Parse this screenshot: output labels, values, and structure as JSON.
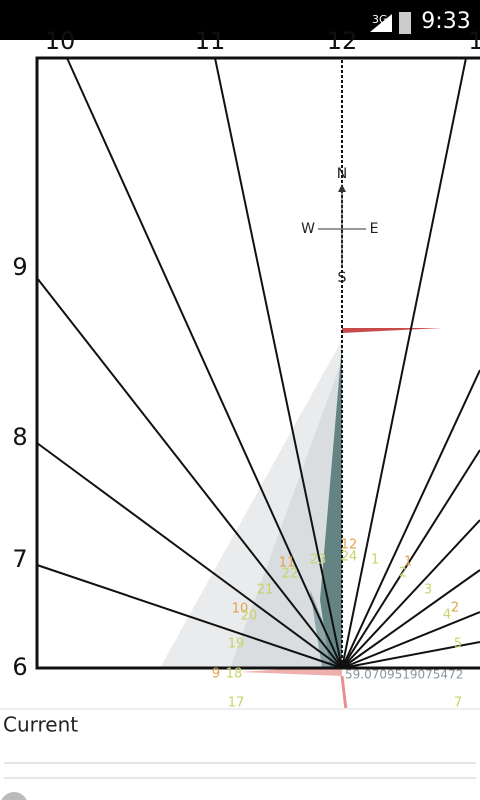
{
  "status_bar": {
    "network": "3G",
    "time": "9:33"
  },
  "dial": {
    "top_hours": [
      "10",
      "11",
      "12",
      "1"
    ],
    "left_hours": [
      "9",
      "8",
      "7",
      "6"
    ],
    "compass": {
      "north": "N",
      "west": "W",
      "east": "E",
      "south": "S"
    },
    "sun_marks": [
      "12",
      "24",
      "1",
      "1",
      "2",
      "11",
      "23",
      "22",
      "21",
      "3",
      "2",
      "4",
      "10",
      "20",
      "5",
      "19",
      "9",
      "18",
      "17",
      "7"
    ],
    "reading": "59.0709519075472"
  },
  "panel": {
    "label": "Current"
  }
}
